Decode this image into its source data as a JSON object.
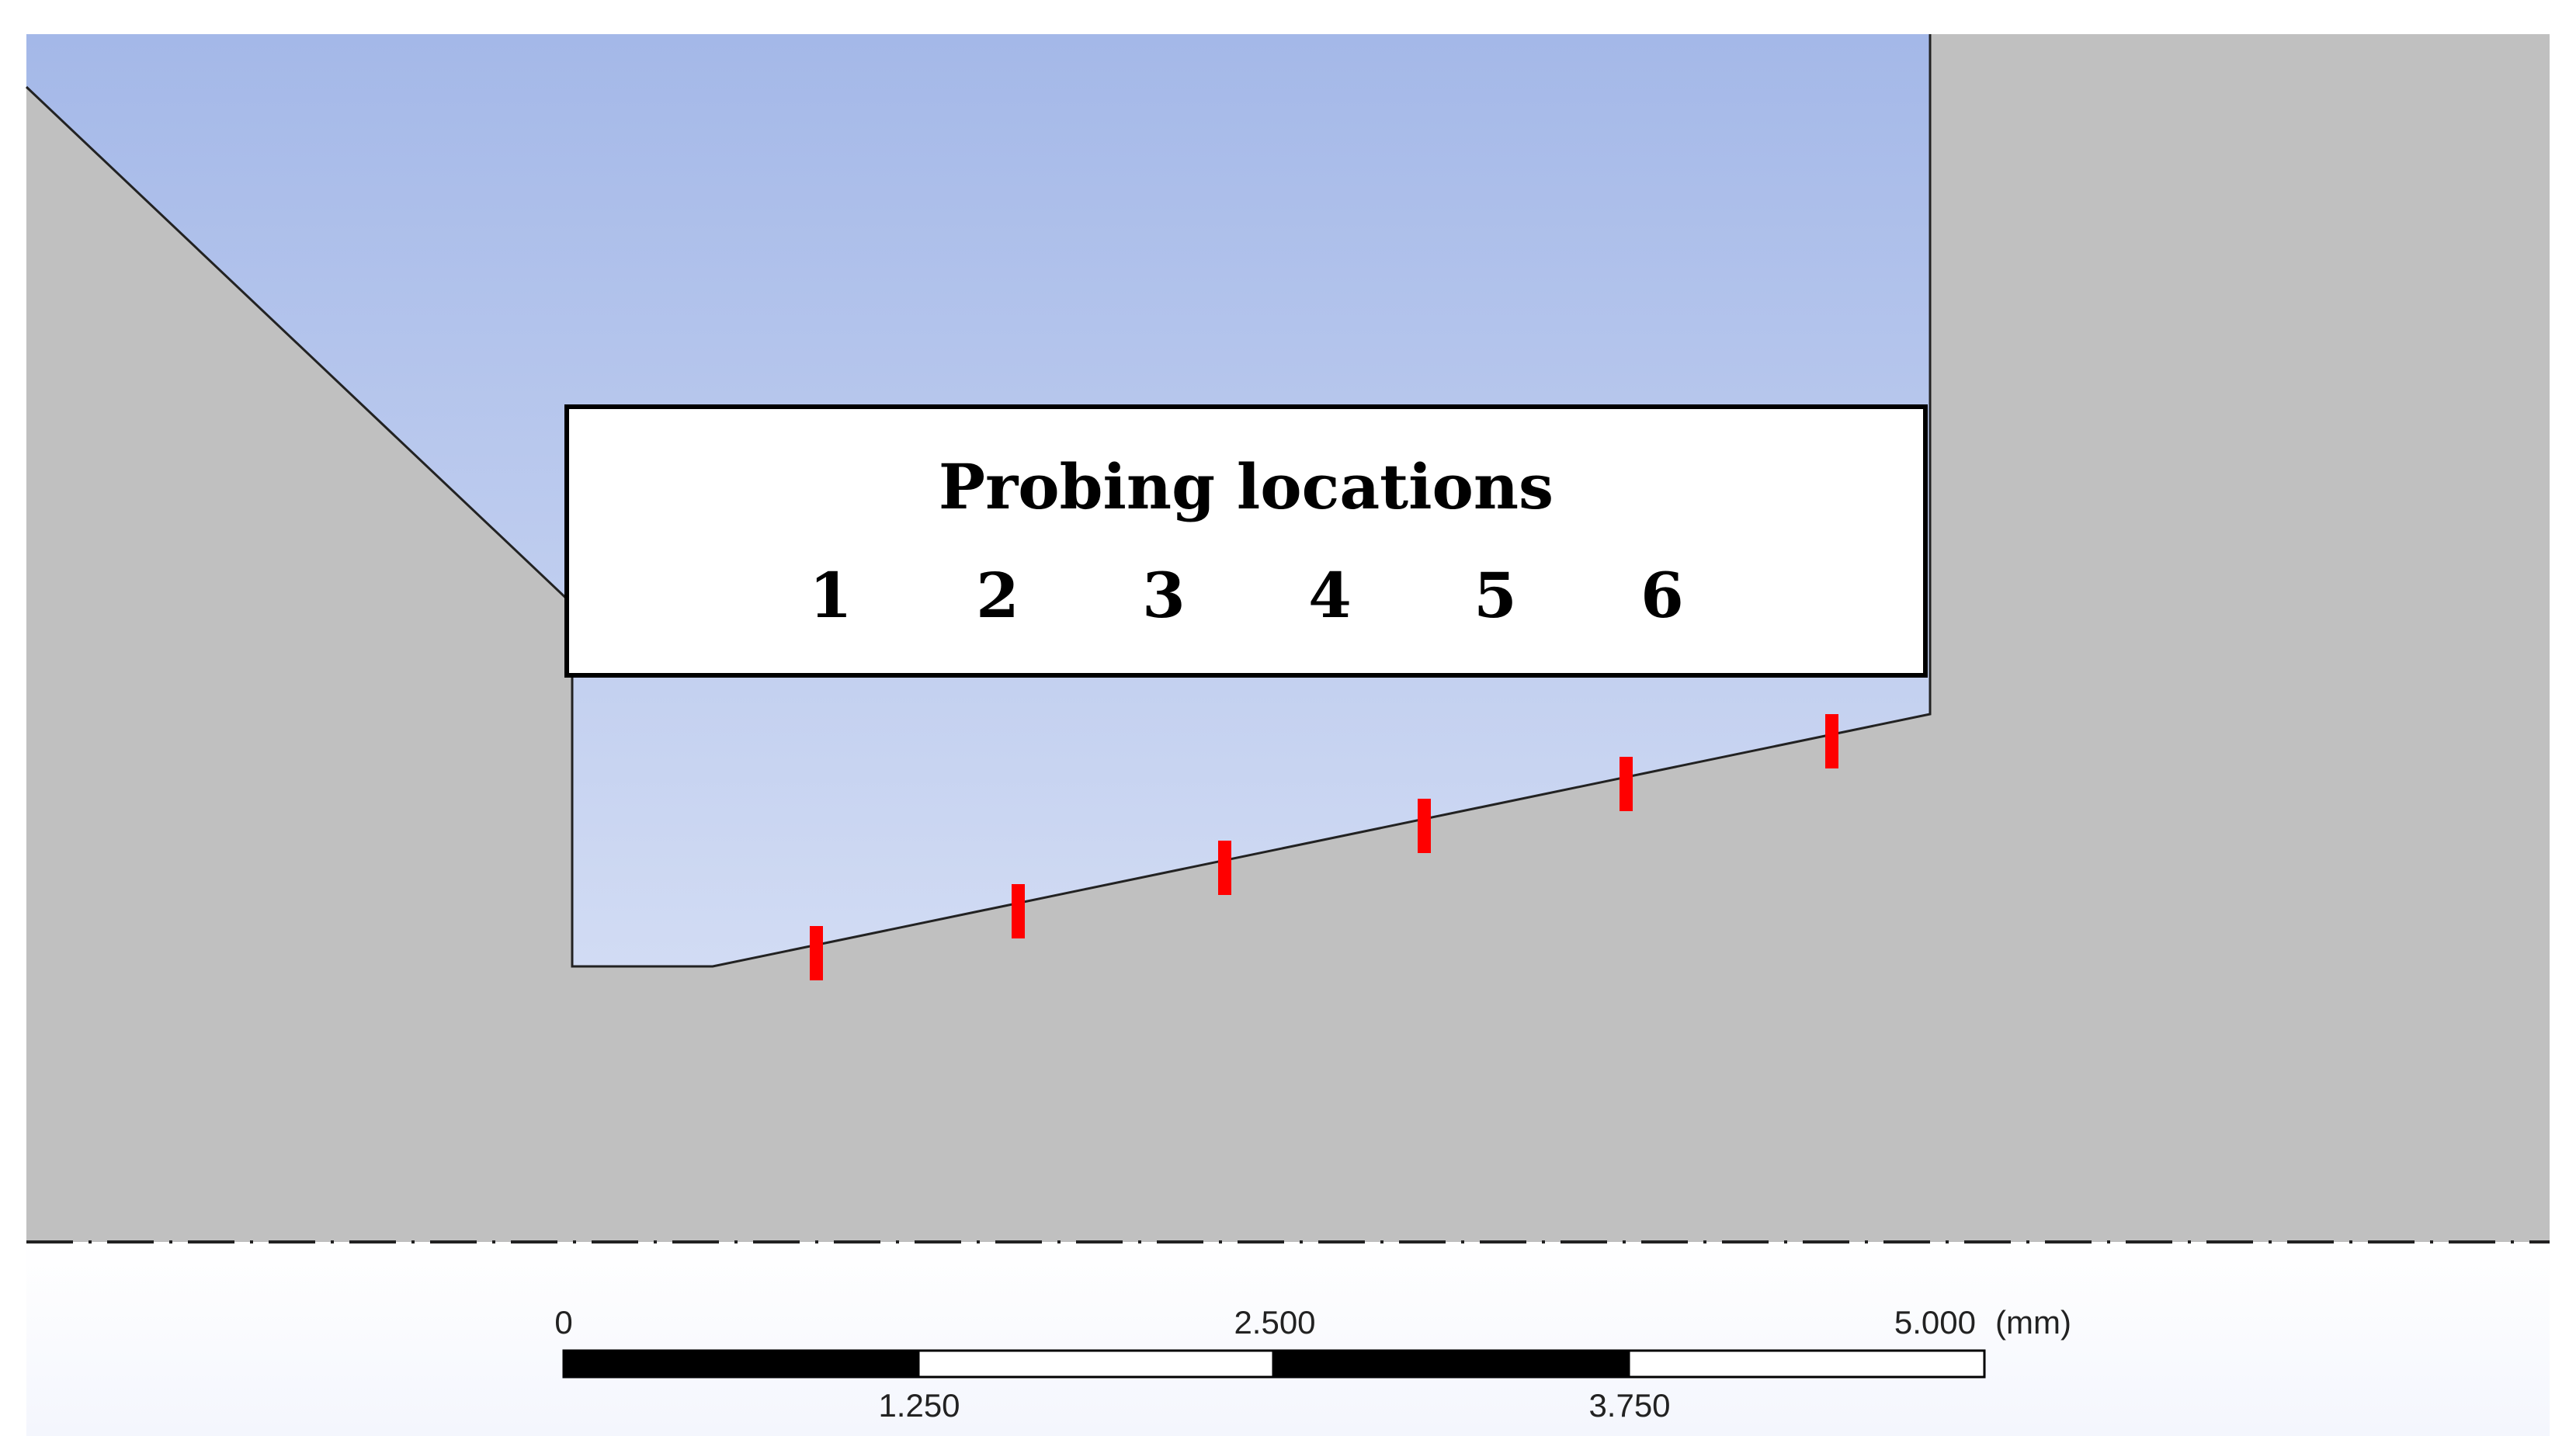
{
  "legend": {
    "title": "Probing locations",
    "numbers": [
      "1",
      "2",
      "3",
      "4",
      "5",
      "6"
    ]
  },
  "scale_bar": {
    "top_labels": [
      "0",
      "2.500",
      "5.000"
    ],
    "unit": "(mm)",
    "bottom_labels": [
      "1.250",
      "3.750"
    ]
  },
  "colors": {
    "solid": "#c0c0c0",
    "fluid_top": "#a4b8e8",
    "fluid_bottom": "#dfe6f7",
    "probe": "#ff0000",
    "scale_dark": "#000000",
    "scale_light": "#ffffff",
    "footer_bg": "#f4f6fd"
  }
}
